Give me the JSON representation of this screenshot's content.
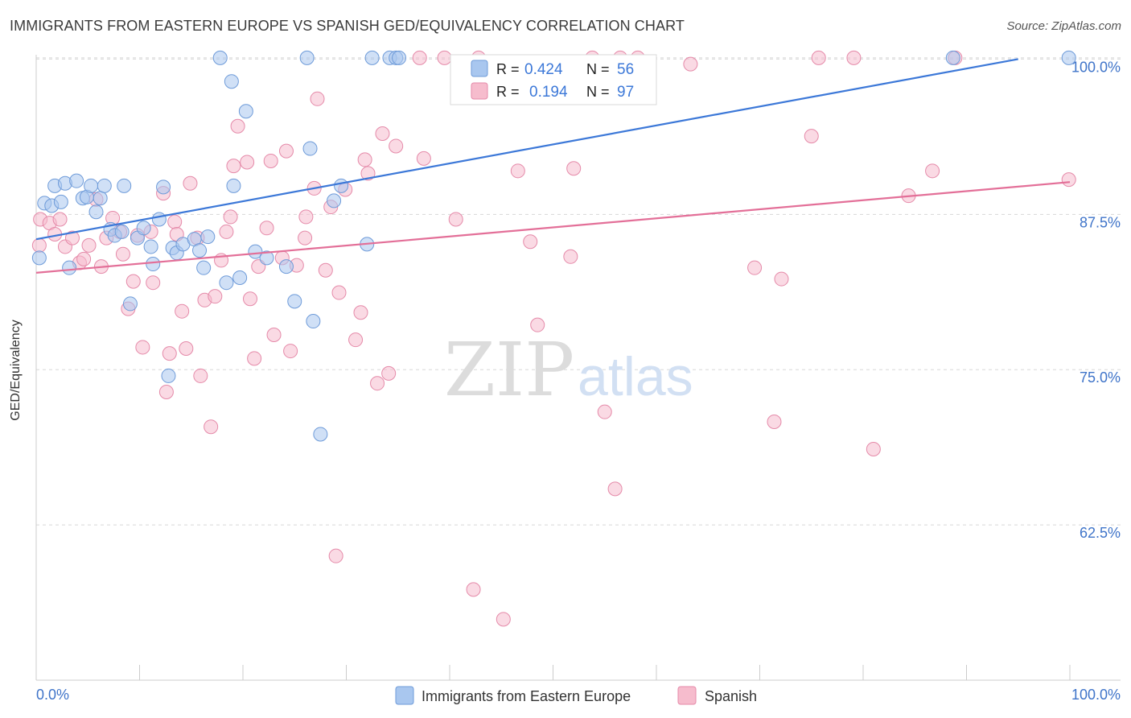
{
  "title": "IMMIGRANTS FROM EASTERN EUROPE VS SPANISH GED/EQUIVALENCY CORRELATION CHART",
  "source": "Source: ZipAtlas.com",
  "watermark": {
    "zip": "ZIP",
    "atlas": "atlas"
  },
  "legend_box": {
    "rows": [
      {
        "r_label": "R =",
        "r_value": "0.424",
        "n_label": "N =",
        "n_value": "56"
      },
      {
        "r_label": "R =",
        "r_value": "0.194",
        "n_label": "N =",
        "n_value": "97"
      }
    ]
  },
  "chart_data": {
    "type": "scatter",
    "title": "IMMIGRANTS FROM EASTERN EUROPE VS SPANISH GED/EQUIVALENCY CORRELATION CHART",
    "xlabel": "",
    "ylabel": "GED/Equivalency",
    "xlim": [
      0,
      100
    ],
    "ylim": [
      50,
      101
    ],
    "x_tick_labels": [
      "0.0%",
      "100.0%"
    ],
    "y_ticks": [
      62.5,
      75.0,
      87.5,
      100.0
    ],
    "y_tick_labels": [
      "62.5%",
      "75.0%",
      "87.5%",
      "100.0%"
    ],
    "grid": true,
    "legend_position": "bottom",
    "colors": {
      "blue_fill": "#a9c7ef",
      "blue_line": "#3c78d8",
      "pink_fill": "#f6bccd",
      "pink_line": "#e36f98",
      "tick_text": "#3f74c9"
    },
    "series": [
      {
        "name": "Immigrants from Eastern Europe",
        "r": 0.424,
        "n": 56,
        "trend": [
          [
            0,
            85.5
          ],
          [
            95,
            100.0
          ]
        ],
        "points": [
          [
            0.3,
            84
          ],
          [
            0.8,
            88.4
          ],
          [
            1.5,
            88.2
          ],
          [
            1.8,
            89.8
          ],
          [
            2.4,
            88.5
          ],
          [
            2.8,
            90
          ],
          [
            3.2,
            83.2
          ],
          [
            3.9,
            90.2
          ],
          [
            4.5,
            88.8
          ],
          [
            4.9,
            88.9
          ],
          [
            5.3,
            89.8
          ],
          [
            5.8,
            87.7
          ],
          [
            6.2,
            88.8
          ],
          [
            6.6,
            89.8
          ],
          [
            7.2,
            86.3
          ],
          [
            7.6,
            85.8
          ],
          [
            8.3,
            86.1
          ],
          [
            8.5,
            89.8
          ],
          [
            9.1,
            80.3
          ],
          [
            9.8,
            85.6
          ],
          [
            10.4,
            86.4
          ],
          [
            11.1,
            84.9
          ],
          [
            11.3,
            83.5
          ],
          [
            11.9,
            87.1
          ],
          [
            12.3,
            89.7
          ],
          [
            12.8,
            74.5
          ],
          [
            13.2,
            84.8
          ],
          [
            13.6,
            84.4
          ],
          [
            14.2,
            85.1
          ],
          [
            15.3,
            85.5
          ],
          [
            15.8,
            84.6
          ],
          [
            16.2,
            83.2
          ],
          [
            16.6,
            85.7
          ],
          [
            17.8,
            100.1
          ],
          [
            18.4,
            82
          ],
          [
            18.9,
            98.2
          ],
          [
            19.1,
            89.8
          ],
          [
            19.7,
            82.4
          ],
          [
            20.3,
            95.8
          ],
          [
            21.2,
            84.5
          ],
          [
            22.3,
            84
          ],
          [
            24.2,
            83.3
          ],
          [
            25.0,
            80.5
          ],
          [
            26.2,
            100.1
          ],
          [
            26.5,
            92.8
          ],
          [
            26.8,
            78.9
          ],
          [
            27.5,
            69.8
          ],
          [
            28.8,
            88.6
          ],
          [
            29.5,
            89.8
          ],
          [
            32.0,
            85.1
          ],
          [
            32.5,
            100.1
          ],
          [
            34.2,
            100.1
          ],
          [
            34.8,
            100.1
          ],
          [
            35.1,
            100.1
          ],
          [
            88.7,
            100.1
          ],
          [
            99.9,
            100.1
          ]
        ]
      },
      {
        "name": "Spanish",
        "r": 0.194,
        "n": 97,
        "trend": [
          [
            0,
            82.8
          ],
          [
            100,
            90.1
          ]
        ],
        "points": [
          [
            0.3,
            85
          ],
          [
            0.4,
            87.1
          ],
          [
            1.3,
            86.8
          ],
          [
            1.8,
            85.9
          ],
          [
            2.3,
            87.1
          ],
          [
            2.8,
            84.9
          ],
          [
            3.5,
            85.6
          ],
          [
            4.2,
            83.6
          ],
          [
            4.6,
            83.9
          ],
          [
            5.1,
            85
          ],
          [
            5.8,
            88.7
          ],
          [
            6.3,
            83.3
          ],
          [
            6.8,
            85.6
          ],
          [
            7.4,
            87.2
          ],
          [
            8.1,
            86.1
          ],
          [
            8.4,
            84.3
          ],
          [
            8.9,
            79.9
          ],
          [
            9.4,
            82.1
          ],
          [
            9.8,
            85.8
          ],
          [
            10.3,
            76.8
          ],
          [
            11.1,
            86.1
          ],
          [
            11.3,
            82
          ],
          [
            12.3,
            89.2
          ],
          [
            12.6,
            73.2
          ],
          [
            12.9,
            76.3
          ],
          [
            13.4,
            86.9
          ],
          [
            13.6,
            85.9
          ],
          [
            14.1,
            79.7
          ],
          [
            14.5,
            76.7
          ],
          [
            14.9,
            90
          ],
          [
            15.6,
            85.6
          ],
          [
            15.9,
            74.5
          ],
          [
            16.3,
            80.6
          ],
          [
            16.9,
            70.4
          ],
          [
            17.3,
            80.9
          ],
          [
            17.9,
            83.8
          ],
          [
            18.4,
            86.1
          ],
          [
            18.8,
            87.3
          ],
          [
            19.1,
            91.4
          ],
          [
            19.5,
            94.6
          ],
          [
            20.4,
            91.7
          ],
          [
            20.7,
            80.7
          ],
          [
            21.1,
            75.9
          ],
          [
            21.5,
            83.3
          ],
          [
            22.3,
            86.4
          ],
          [
            22.7,
            91.8
          ],
          [
            23.0,
            77.8
          ],
          [
            23.8,
            84
          ],
          [
            24.2,
            92.6
          ],
          [
            24.6,
            76.5
          ],
          [
            25.2,
            83.4
          ],
          [
            26.0,
            85.6
          ],
          [
            26.1,
            87.3
          ],
          [
            26.9,
            89.6
          ],
          [
            27.2,
            96.8
          ],
          [
            28.0,
            83
          ],
          [
            28.5,
            88.1
          ],
          [
            29.0,
            60
          ],
          [
            29.3,
            81.2
          ],
          [
            29.9,
            89.5
          ],
          [
            30.9,
            77.4
          ],
          [
            31.4,
            79.6
          ],
          [
            31.8,
            91.9
          ],
          [
            32.1,
            90.8
          ],
          [
            33.0,
            73.9
          ],
          [
            33.5,
            94
          ],
          [
            34.1,
            74.7
          ],
          [
            34.8,
            93
          ],
          [
            37.1,
            100.1
          ],
          [
            37.5,
            92
          ],
          [
            39.5,
            100.1
          ],
          [
            40.6,
            87.1
          ],
          [
            42.3,
            57.3
          ],
          [
            42.8,
            100.1
          ],
          [
            45.2,
            54.9
          ],
          [
            46.6,
            91
          ],
          [
            47.8,
            85.3
          ],
          [
            48.5,
            78.6
          ],
          [
            51.7,
            84.1
          ],
          [
            52.0,
            91.2
          ],
          [
            53.8,
            100.1
          ],
          [
            55.0,
            71.6
          ],
          [
            56.0,
            65.4
          ],
          [
            56.5,
            100.1
          ],
          [
            58.2,
            100.1
          ],
          [
            63.3,
            99.6
          ],
          [
            69.5,
            83.2
          ],
          [
            71.4,
            70.8
          ],
          [
            72.1,
            82.3
          ],
          [
            75.0,
            93.8
          ],
          [
            75.7,
            100.1
          ],
          [
            79.1,
            100.1
          ],
          [
            81.0,
            68.6
          ],
          [
            84.4,
            89
          ],
          [
            86.7,
            91
          ],
          [
            88.9,
            100.1
          ],
          [
            99.9,
            90.3
          ]
        ]
      }
    ]
  }
}
